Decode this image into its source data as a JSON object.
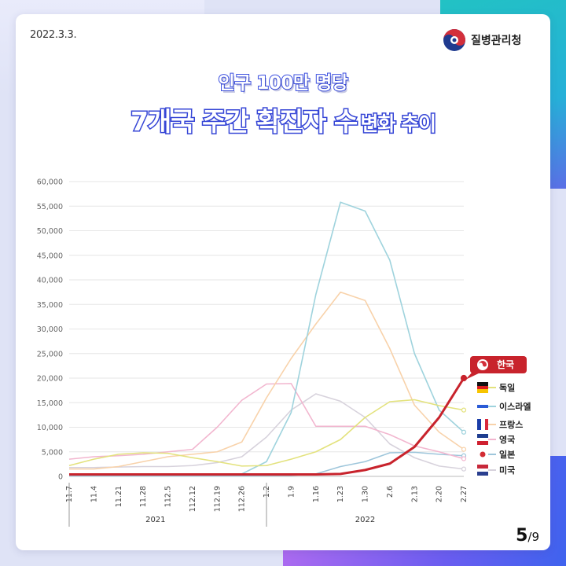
{
  "date": "2022.3.3.",
  "agency": "질병관리청",
  "title_line1": "인구 100만 명당",
  "title_big": "7개국 주간 확진자 수",
  "title_small": "변화 추이",
  "page": {
    "current": "5",
    "total": "/9"
  },
  "chart_data": {
    "type": "line",
    "title": "인구 100만 명당 7개국 주간 확진자 수 변화 추이",
    "x": [
      "11.7",
      "11.4",
      "11.21",
      "11.28",
      "112.5",
      "112.12",
      "112.19",
      "112.26",
      "1.2",
      "1.9",
      "1.16",
      "1.23",
      "1.30",
      "2.6",
      "2.13",
      "2.20",
      "2.27"
    ],
    "year_groups": [
      {
        "label": "2021",
        "from": 0,
        "to": 7
      },
      {
        "label": "2022",
        "from": 8,
        "to": 16
      }
    ],
    "yticks": [
      "60,000",
      "55,000",
      "50,000",
      "45,000",
      "40,000",
      "35,000",
      "30,000",
      "25,000",
      "20,000",
      "15,000",
      "10,000",
      "5,000",
      "0"
    ],
    "ylim": [
      0,
      60000
    ],
    "grid": true,
    "legend_position": "right",
    "series": [
      {
        "name": "한국",
        "color": "#c8232c",
        "values": [
          400,
          400,
          400,
          400,
          400,
          400,
          400,
          400,
          400,
          400,
          400,
          500,
          1300,
          2600,
          6000,
          12000,
          20000
        ]
      },
      {
        "name": "독일",
        "color": "#e3e27d",
        "values": [
          2200,
          3500,
          4500,
          4800,
          4700,
          3800,
          3000,
          2100,
          2200,
          3500,
          5000,
          7500,
          12000,
          15200,
          15600,
          14400,
          13500
        ]
      },
      {
        "name": "이스라엘",
        "color": "#9fd3dd",
        "values": [
          500,
          500,
          500,
          500,
          500,
          500,
          500,
          500,
          3000,
          13000,
          37000,
          55800,
          54000,
          44000,
          25000,
          13500,
          9000
        ]
      },
      {
        "name": "프랑스",
        "color": "#f8d2aa",
        "values": [
          1500,
          1500,
          2000,
          3000,
          4000,
          4500,
          5000,
          7000,
          16000,
          24000,
          31000,
          37500,
          35800,
          26000,
          14500,
          9000,
          5500
        ]
      },
      {
        "name": "영국",
        "color": "#f2b6cf",
        "values": [
          3500,
          4000,
          4200,
          4500,
          5000,
          5500,
          10000,
          15500,
          18800,
          18900,
          10200,
          10200,
          10200,
          8500,
          6200,
          5000,
          3600
        ]
      },
      {
        "name": "일본",
        "color": "#9ec6db",
        "values": [
          100,
          100,
          100,
          100,
          100,
          100,
          100,
          100,
          150,
          200,
          500,
          2000,
          3000,
          4800,
          4900,
          4500,
          4200
        ]
      },
      {
        "name": "미국",
        "color": "#d7d2dc",
        "values": [
          1800,
          1800,
          1900,
          2000,
          2000,
          2200,
          2800,
          4000,
          8000,
          13500,
          16800,
          15300,
          12000,
          6600,
          3800,
          2100,
          1500
        ]
      }
    ]
  }
}
